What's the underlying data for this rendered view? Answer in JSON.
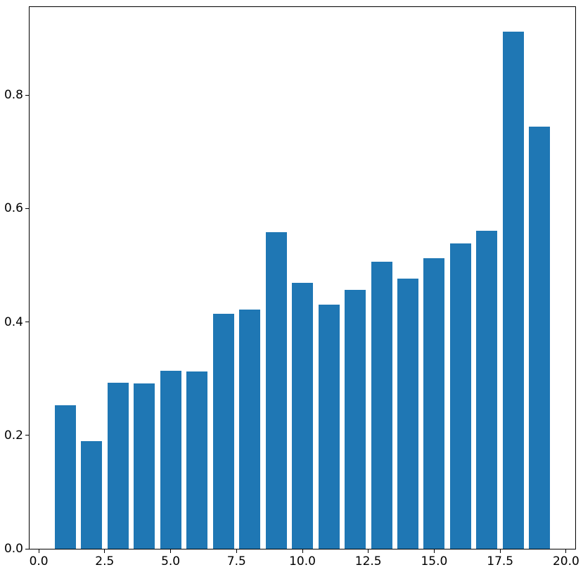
{
  "figure": {
    "background": "#ffffff",
    "axes_edge_color": "#000000",
    "tick_color": "#000000",
    "tick_label_color": "#000000"
  },
  "chart_data": {
    "type": "bar",
    "title": "",
    "xlabel": "",
    "ylabel": "",
    "x": [
      1,
      2,
      3,
      4,
      5,
      6,
      7,
      8,
      9,
      10,
      11,
      12,
      13,
      14,
      15,
      16,
      17,
      18,
      19
    ],
    "values": [
      0.253,
      0.19,
      0.293,
      0.291,
      0.314,
      0.313,
      0.414,
      0.422,
      0.558,
      0.469,
      0.431,
      0.456,
      0.506,
      0.476,
      0.512,
      0.538,
      0.561,
      0.912,
      0.744
    ],
    "bar_color": "#1f77b4",
    "bar_width": 0.8,
    "xlim": [
      -0.35,
      20.35
    ],
    "ylim": [
      0,
      0.955
    ],
    "xticks": [
      0,
      2.5,
      5,
      7.5,
      10,
      12.5,
      15,
      17.5,
      20
    ],
    "xtick_labels": [
      "0.0",
      "2.5",
      "5.0",
      "7.5",
      "10.0",
      "12.5",
      "15.0",
      "17.5",
      "20.0"
    ],
    "yticks": [
      0,
      0.2,
      0.4,
      0.6,
      0.8
    ],
    "ytick_labels": [
      "0.0",
      "0.2",
      "0.4",
      "0.6",
      "0.8"
    ],
    "grid": false,
    "legend_position": "none"
  }
}
